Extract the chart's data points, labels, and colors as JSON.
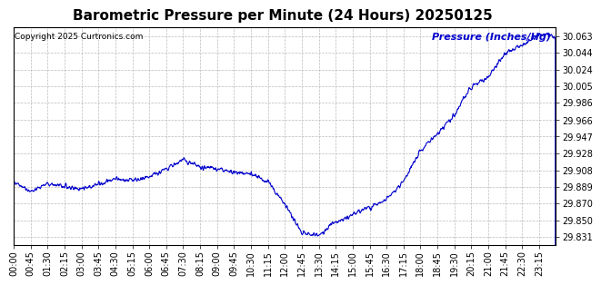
{
  "title": "Barometric Pressure per Minute (24 Hours) 20250125",
  "copyright_text": "Copyright 2025 Curtronics.com",
  "legend_text": "Pressure (Inches/Hg)",
  "line_color": "#0000cc",
  "bg_color": "#ffffff",
  "grid_color": "#aaaaaa",
  "yticks": [
    29.831,
    29.85,
    29.87,
    29.889,
    29.908,
    29.928,
    29.947,
    29.966,
    29.986,
    30.005,
    30.024,
    30.044,
    30.063
  ],
  "ylim": [
    29.821,
    30.073
  ],
  "xtick_labels": [
    "00:00",
    "00:45",
    "01:30",
    "02:15",
    "03:00",
    "03:45",
    "04:30",
    "05:15",
    "06:00",
    "06:45",
    "07:30",
    "08:15",
    "09:00",
    "09:45",
    "10:30",
    "11:15",
    "12:00",
    "12:45",
    "13:30",
    "14:15",
    "15:00",
    "15:45",
    "16:30",
    "17:15",
    "18:00",
    "18:45",
    "19:30",
    "20:15",
    "21:00",
    "21:45",
    "22:30",
    "23:15"
  ],
  "title_fontsize": 11,
  "copyright_fontsize": 6.5,
  "legend_fontsize": 8,
  "tick_fontsize": 7
}
